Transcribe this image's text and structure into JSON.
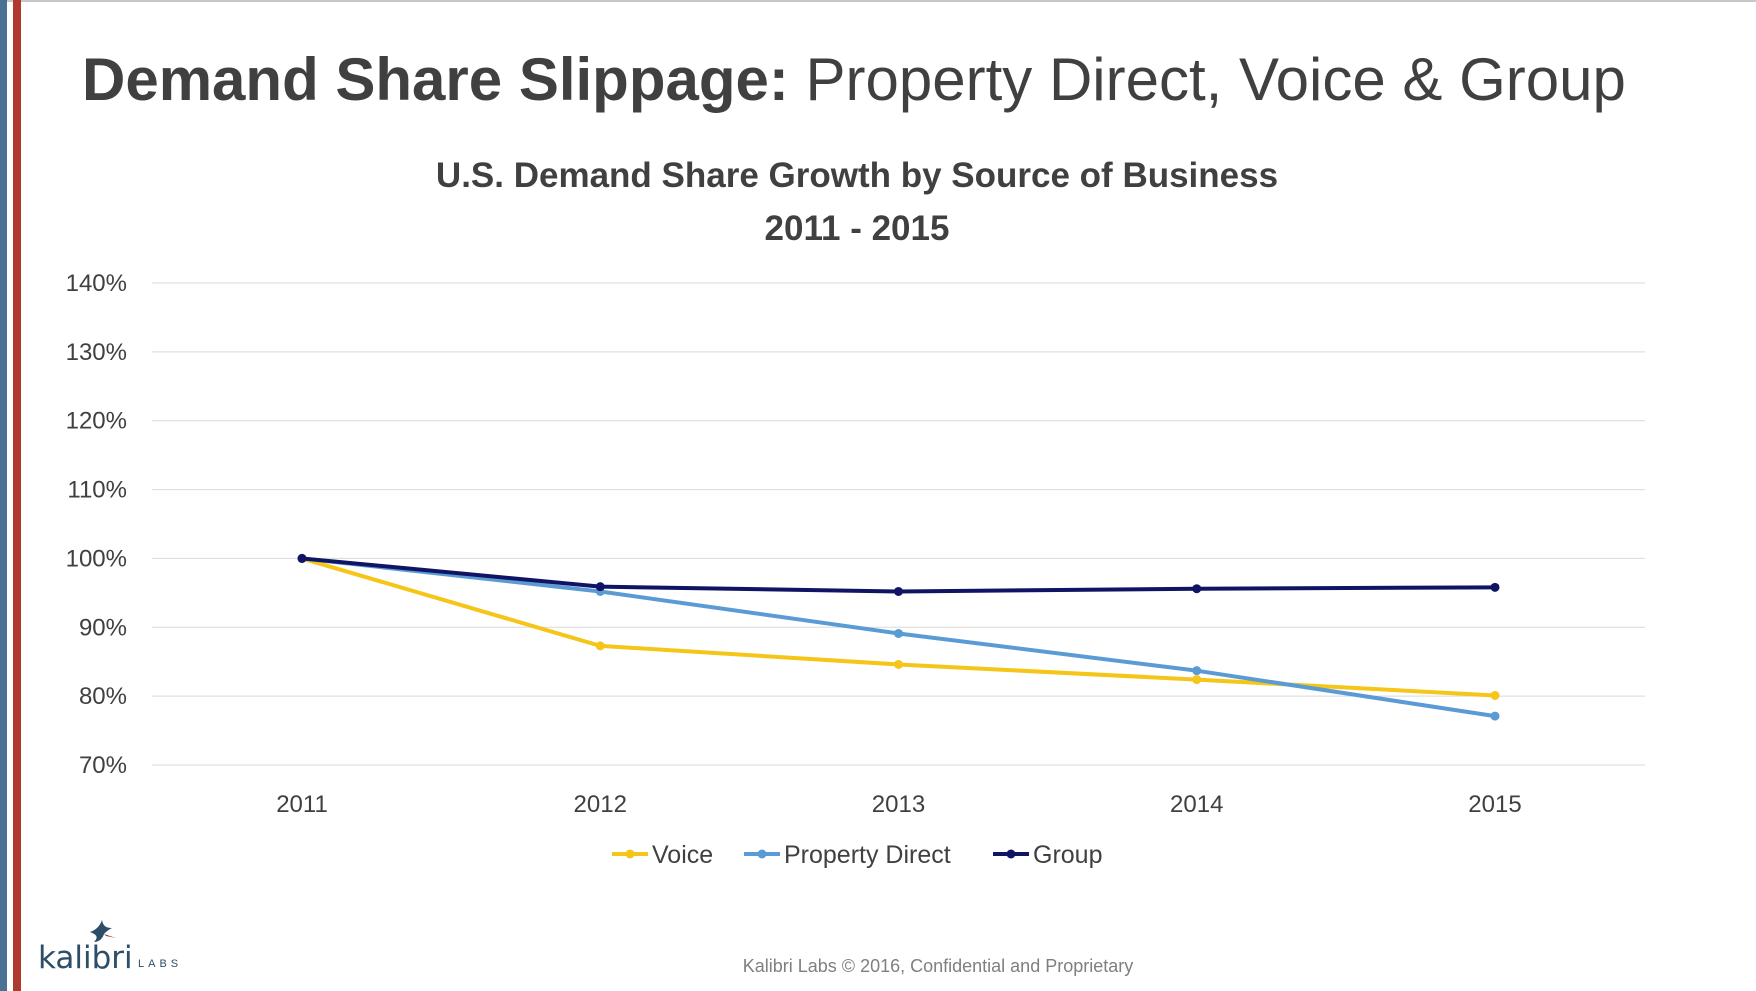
{
  "slide": {
    "title_bold": "Demand Share Slippage:",
    "title_regular": " Property Direct, Voice & Group"
  },
  "footer": {
    "text": "Kalibri Labs © 2016, Confidential and Proprietary"
  },
  "logo": {
    "text_main": "kalibri",
    "text_sub": "LABS",
    "icon": "hummingbird-icon"
  },
  "colors": {
    "voice": "#f5c518",
    "property_direct": "#5b9bd5",
    "group": "#0f1464",
    "gridline": "#d9d9d9",
    "axis_text": "#404040",
    "title_text": "#404040"
  },
  "chart_data": {
    "type": "line",
    "title": "U.S. Demand Share Growth by Source of Business",
    "subtitle": "2011 - 2015",
    "x": [
      "2011",
      "2012",
      "2013",
      "2014",
      "2015"
    ],
    "y_ticks": [
      "70%",
      "80%",
      "90%",
      "100%",
      "110%",
      "120%",
      "130%",
      "140%"
    ],
    "ylim": [
      70,
      140
    ],
    "y_unit": "%",
    "grid": true,
    "legend_position": "bottom",
    "series": [
      {
        "name": "Voice",
        "color": "#f5c518",
        "values": [
          100,
          87.3,
          84.6,
          82.4,
          80.1
        ]
      },
      {
        "name": "Property Direct",
        "color": "#5b9bd5",
        "values": [
          100,
          95.2,
          89.1,
          83.7,
          77.1
        ]
      },
      {
        "name": "Group",
        "color": "#0f1464",
        "values": [
          100,
          95.9,
          95.2,
          95.6,
          95.8
        ]
      }
    ]
  }
}
